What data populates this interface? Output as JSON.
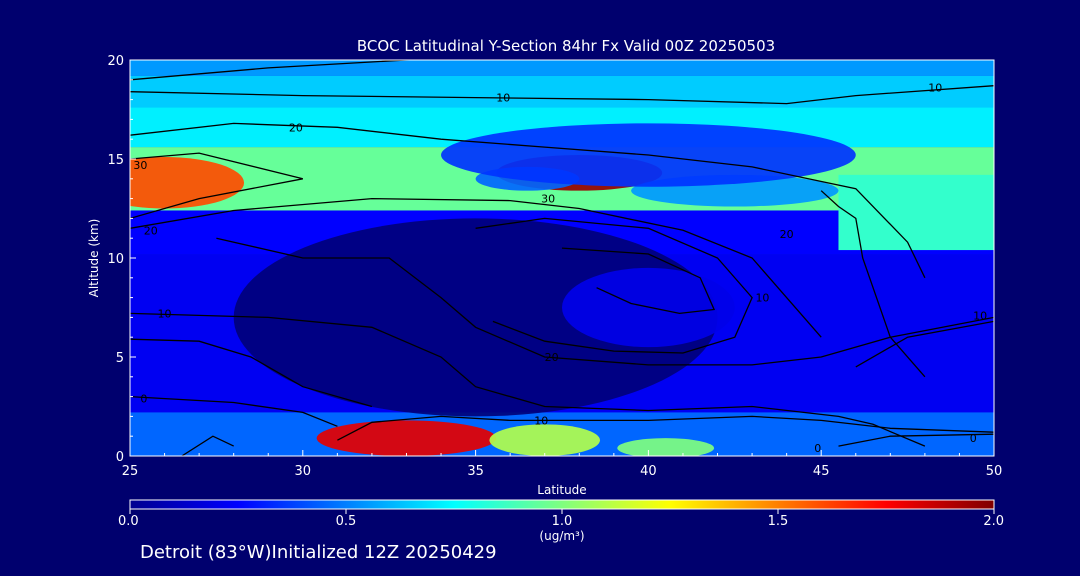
{
  "chart_data": {
    "type": "heatmap",
    "title": "BCOC Latitudinal Y-Section 84hr  Fx Valid 00Z 20250503",
    "xlabel": "Latitude",
    "ylabel": "Altitude (km)",
    "xlim": [
      25,
      50
    ],
    "ylim": [
      0,
      20
    ],
    "x_ticks": [
      "25",
      "30",
      "35",
      "40",
      "45",
      "50"
    ],
    "y_ticks": [
      "0",
      "5",
      "10",
      "15",
      "20"
    ],
    "grid": false,
    "colorbar": {
      "min": 0.0,
      "max": 2.0,
      "ticks": [
        "0.0",
        "0.5",
        "1.0",
        "1.5",
        "2.0"
      ],
      "units": "(ug/m³)",
      "stops": [
        "#00008f",
        "#0000ff",
        "#007fff",
        "#00ffff",
        "#7fff7f",
        "#ffff00",
        "#ff7f00",
        "#ff0000",
        "#7f0000"
      ]
    },
    "field_blobs": [
      {
        "lat": 38.0,
        "alt": 14.3,
        "dlat": 2.4,
        "dalt": 0.9,
        "value": 1.95
      },
      {
        "lat": 36.5,
        "alt": 14.0,
        "dlat": 1.5,
        "dalt": 0.6,
        "value": 0.45
      },
      {
        "lat": 26.0,
        "alt": 13.8,
        "dlat": 2.3,
        "dalt": 1.3,
        "value": 1.6
      },
      {
        "lat": 42.5,
        "alt": 13.4,
        "dlat": 3.0,
        "dalt": 0.8,
        "value": 0.55
      },
      {
        "lat": 40.0,
        "alt": 15.2,
        "dlat": 6.0,
        "dalt": 1.6,
        "value": 0.35
      },
      {
        "lat": 33.0,
        "alt": 0.9,
        "dlat": 2.6,
        "dalt": 0.9,
        "value": 1.8
      },
      {
        "lat": 37.0,
        "alt": 0.8,
        "dlat": 1.6,
        "dalt": 0.8,
        "value": 1.1
      },
      {
        "lat": 40.5,
        "alt": 0.4,
        "dlat": 1.4,
        "dalt": 0.5,
        "value": 1.0
      },
      {
        "lat": 35.0,
        "alt": 7.0,
        "dlat": 7.0,
        "dalt": 5.0,
        "value": -0.5
      },
      {
        "lat": 40.0,
        "alt": 7.5,
        "dlat": 2.5,
        "dalt": 2.0,
        "value": 0.2
      }
    ],
    "contour_labels": [
      {
        "text": "10",
        "lat": 35.8,
        "alt": 18.1
      },
      {
        "text": "10",
        "lat": 48.3,
        "alt": 18.6
      },
      {
        "text": "20",
        "lat": 29.8,
        "alt": 16.6
      },
      {
        "text": "30",
        "lat": 25.3,
        "alt": 14.7
      },
      {
        "text": "20",
        "lat": 25.6,
        "alt": 11.4
      },
      {
        "text": "30",
        "lat": 37.1,
        "alt": 13.0
      },
      {
        "text": "20",
        "lat": 44.0,
        "alt": 11.2
      },
      {
        "text": "10",
        "lat": 43.3,
        "alt": 8.0
      },
      {
        "text": "10",
        "lat": 26.0,
        "alt": 7.2
      },
      {
        "text": "0",
        "lat": 25.4,
        "alt": 2.9
      },
      {
        "text": "20",
        "lat": 37.2,
        "alt": 5.0
      },
      {
        "text": "10",
        "lat": 36.9,
        "alt": 1.8
      },
      {
        "text": "0",
        "lat": 44.9,
        "alt": 0.4
      },
      {
        "text": "0",
        "lat": 49.4,
        "alt": 0.9
      },
      {
        "text": "10",
        "lat": 49.6,
        "alt": 7.1
      }
    ],
    "contours": [
      [
        [
          25,
          19
        ],
        [
          29,
          19.6
        ],
        [
          33,
          20
        ],
        [
          36,
          20.2
        ]
      ],
      [
        [
          25,
          18.4
        ],
        [
          30,
          18.2
        ],
        [
          35,
          18.1
        ],
        [
          40,
          18
        ],
        [
          44,
          17.8
        ],
        [
          46,
          18.2
        ],
        [
          50,
          18.7
        ]
      ],
      [
        [
          25,
          16.2
        ],
        [
          28,
          16.8
        ],
        [
          31,
          16.6
        ],
        [
          34,
          16
        ],
        [
          37,
          15.6
        ],
        [
          40,
          15.2
        ],
        [
          43,
          14.6
        ],
        [
          46,
          13.5
        ],
        [
          47.5,
          10.8
        ],
        [
          48,
          9
        ]
      ],
      [
        [
          25,
          15
        ],
        [
          27,
          15.3
        ],
        [
          30,
          14
        ],
        [
          27,
          13
        ],
        [
          25,
          12
        ]
      ],
      [
        [
          25,
          11.5
        ],
        [
          28,
          12.4
        ],
        [
          32,
          13
        ],
        [
          36,
          12.9
        ],
        [
          38,
          12.5
        ],
        [
          41,
          11.4
        ],
        [
          43,
          10
        ],
        [
          44,
          8
        ],
        [
          45,
          6
        ]
      ],
      [
        [
          45,
          13.4
        ],
        [
          45.5,
          12.6
        ],
        [
          46,
          12
        ],
        [
          46.2,
          10
        ],
        [
          47,
          6
        ],
        [
          48,
          4
        ]
      ],
      [
        [
          35,
          11.5
        ],
        [
          37,
          12
        ],
        [
          40,
          11.5
        ],
        [
          42,
          10
        ],
        [
          43,
          8
        ],
        [
          42.5,
          6
        ],
        [
          41,
          5.2
        ],
        [
          39,
          5.3
        ],
        [
          37,
          5.8
        ],
        [
          35.5,
          6.8
        ]
      ],
      [
        [
          37.5,
          10.5
        ],
        [
          40,
          10.2
        ],
        [
          41.5,
          9
        ],
        [
          41.9,
          7.4
        ],
        [
          40.9,
          7.2
        ],
        [
          39.5,
          7.7
        ],
        [
          38.5,
          8.5
        ]
      ],
      [
        [
          27.5,
          11
        ],
        [
          30,
          10
        ],
        [
          32.5,
          10
        ],
        [
          34,
          8
        ],
        [
          35,
          6.5
        ],
        [
          37,
          5
        ],
        [
          40,
          4.6
        ],
        [
          43,
          4.6
        ],
        [
          45,
          5
        ],
        [
          47,
          6
        ],
        [
          50,
          7
        ]
      ],
      [
        [
          25,
          7.2
        ],
        [
          29,
          7
        ],
        [
          32,
          6.5
        ],
        [
          34,
          5
        ],
        [
          35,
          3.5
        ],
        [
          37,
          2.5
        ],
        [
          40,
          2.3
        ],
        [
          43,
          2.5
        ],
        [
          45.5,
          2
        ],
        [
          46.5,
          1.6
        ],
        [
          48,
          0.5
        ]
      ],
      [
        [
          25,
          5.9
        ],
        [
          27,
          5.8
        ],
        [
          28.5,
          5
        ],
        [
          30,
          3.5
        ],
        [
          32,
          2.5
        ]
      ],
      [
        [
          25,
          3
        ],
        [
          28,
          2.7
        ],
        [
          30,
          2.2
        ],
        [
          31,
          1.5
        ]
      ],
      [
        [
          31,
          0.8
        ],
        [
          32,
          1.7
        ],
        [
          34,
          2
        ],
        [
          36,
          1.8
        ],
        [
          38,
          1.8
        ],
        [
          40,
          1.8
        ],
        [
          43,
          2
        ],
        [
          45,
          1.8
        ],
        [
          47,
          1.4
        ],
        [
          50,
          1.2
        ]
      ],
      [
        [
          26.5,
          0
        ],
        [
          27.4,
          1
        ],
        [
          28,
          0.5
        ]
      ],
      [
        [
          45.5,
          0.5
        ],
        [
          47,
          1
        ],
        [
          50,
          1.1
        ]
      ],
      [
        [
          46,
          4.5
        ],
        [
          47.5,
          6
        ],
        [
          50,
          6.8
        ]
      ]
    ]
  },
  "footer": {
    "text": "Detroit (83°W)Initialized 12Z 20250429"
  }
}
